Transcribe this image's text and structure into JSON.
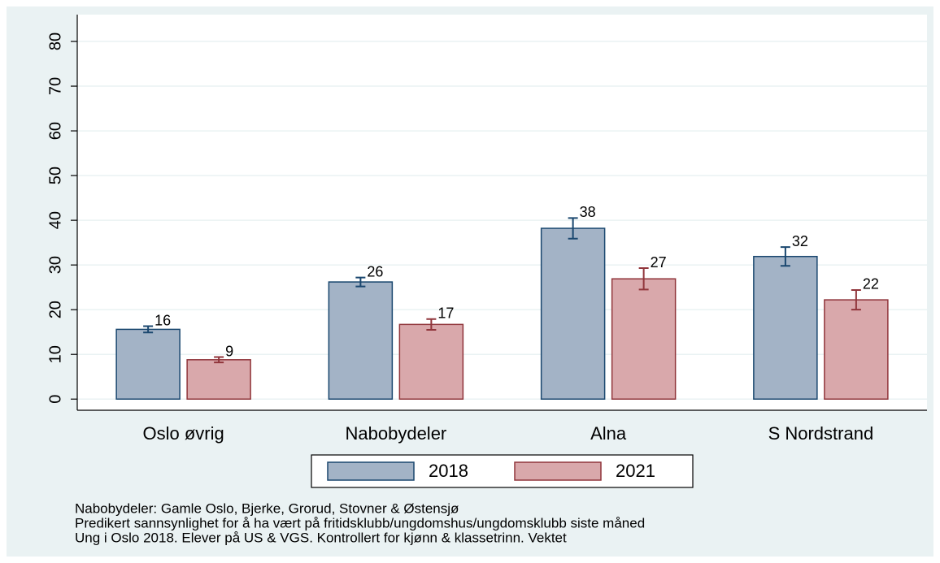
{
  "chart_data": {
    "type": "bar",
    "categories": [
      "Oslo øvrig",
      "Nabobydeler",
      "Alna",
      "S Nordstrand"
    ],
    "series": [
      {
        "name": "2018",
        "color": "#a3b3c6",
        "edge": "#1a476f",
        "values": [
          15.6,
          26.2,
          38.2,
          31.9
        ],
        "value_labels": [
          "16",
          "26",
          "38",
          "32"
        ],
        "errors": [
          0.7,
          1.0,
          2.3,
          2.1
        ]
      },
      {
        "name": "2021",
        "color": "#d9a8ab",
        "edge": "#90353b",
        "values": [
          8.8,
          16.7,
          26.9,
          22.2
        ],
        "value_labels": [
          "9",
          "17",
          "27",
          "22"
        ],
        "errors": [
          0.6,
          1.2,
          2.4,
          2.2
        ]
      }
    ],
    "ylim": [
      -2.5,
      86
    ],
    "yticks": [
      0,
      10,
      20,
      30,
      40,
      50,
      60,
      70,
      80
    ],
    "grid": true,
    "legend": "bottom",
    "notes": [
      "Nabobydeler: Gamle Oslo, Bjerke, Grorud, Stovner & Østensjø",
      "Predikert sannsynlighet for å ha vært på fritidsklubb/ungdomshus/ungdomsklubb siste måned",
      "Ung i Oslo 2018. Elever på US & VGS. Kontrollert for kjønn & klassetrinn. Vektet"
    ]
  }
}
